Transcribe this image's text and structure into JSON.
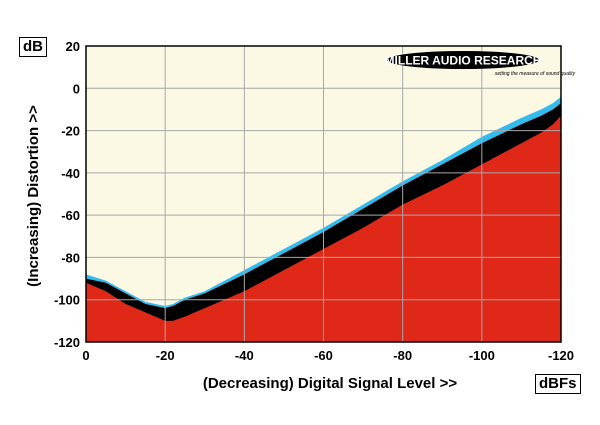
{
  "chart_data": {
    "type": "area",
    "xlabel": "(Decreasing) Digital Signal Level >>",
    "ylabel": "(Increasing) Distortion >>",
    "y_unit": "dB",
    "x_unit": "dBFs",
    "xlim": [
      0,
      -120
    ],
    "ylim": [
      -120,
      20
    ],
    "x_ticks": [
      0,
      -20,
      -40,
      -60,
      -80,
      -100,
      -120
    ],
    "y_ticks": [
      20,
      0,
      -20,
      -40,
      -60,
      -80,
      -100,
      -120
    ],
    "grid": true,
    "logo": {
      "text": "MILLER AUDIO RESEARCH",
      "tagline": "setting the measure of sound quality"
    },
    "series": [
      {
        "color": "#33bbee",
        "x": [
          0,
          -5,
          -10,
          -15,
          -20,
          -22,
          -25,
          -30,
          -40,
          -50,
          -60,
          -70,
          -80,
          -90,
          -100,
          -110,
          -115,
          -118,
          -120
        ],
        "y": [
          -88,
          -91,
          -96,
          -101,
          -103,
          -102,
          -99,
          -96,
          -86,
          -76,
          -66,
          -55,
          -44,
          -34,
          -23,
          -14,
          -10,
          -7,
          -4
        ]
      },
      {
        "color": "#000000",
        "x": [
          0,
          -5,
          -10,
          -15,
          -20,
          -22,
          -25,
          -30,
          -40,
          -50,
          -60,
          -70,
          -80,
          -90,
          -100,
          -110,
          -115,
          -118,
          -120
        ],
        "y": [
          -90,
          -92,
          -97,
          -102,
          -104,
          -103,
          -100,
          -97,
          -88,
          -78,
          -68,
          -57,
          -46,
          -36,
          -26,
          -17,
          -13,
          -10,
          -7
        ]
      },
      {
        "color": "#e02818",
        "x": [
          0,
          -5,
          -10,
          -15,
          -20,
          -22,
          -25,
          -30,
          -40,
          -50,
          -60,
          -70,
          -80,
          -90,
          -100,
          -110,
          -115,
          -118,
          -120
        ],
        "y": [
          -92,
          -96,
          -102,
          -106,
          -110,
          -110,
          -108,
          -104,
          -96,
          -86,
          -76,
          -66,
          -55,
          -46,
          -36,
          -26,
          -21,
          -17,
          -13
        ]
      }
    ]
  },
  "colors": {
    "plot_bg": "#fbf8e4",
    "grid": "#a8a8a8",
    "frame": "#000000"
  }
}
